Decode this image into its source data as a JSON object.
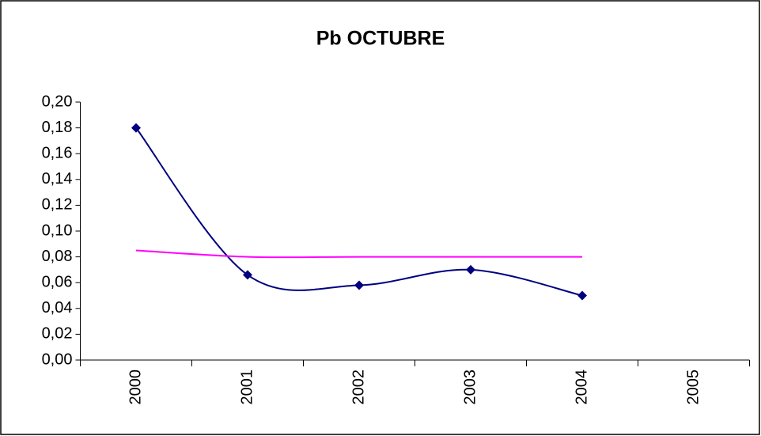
{
  "chart_data": {
    "type": "line",
    "title": "Pb OCTUBRE",
    "categories": [
      "2000",
      "2001",
      "2002",
      "2003",
      "2004",
      "2005"
    ],
    "series": [
      {
        "color": "#000080",
        "values": [
          0.18,
          0.066,
          0.058,
          0.07,
          0.05,
          null
        ],
        "smooth": true,
        "marker": "diamond"
      },
      {
        "color": "#ff00ff",
        "values": [
          0.085,
          0.08,
          0.08,
          0.08,
          0.08,
          null
        ],
        "smooth": true,
        "marker": "none"
      }
    ],
    "ylim": [
      0,
      0.2
    ],
    "yticks": [
      {
        "value": 0,
        "label": "0,00"
      },
      {
        "value": 0.02,
        "label": "0,02"
      },
      {
        "value": 0.04,
        "label": "0,04"
      },
      {
        "value": 0.06,
        "label": "0,06"
      },
      {
        "value": 0.08,
        "label": "0,08"
      },
      {
        "value": 0.1,
        "label": "0,10"
      },
      {
        "value": 0.12,
        "label": "0,12"
      },
      {
        "value": 0.14,
        "label": "0,14"
      },
      {
        "value": 0.16,
        "label": "0,16"
      },
      {
        "value": 0.18,
        "label": "0,18"
      },
      {
        "value": 0.2,
        "label": "0,20"
      }
    ],
    "grid": false
  }
}
